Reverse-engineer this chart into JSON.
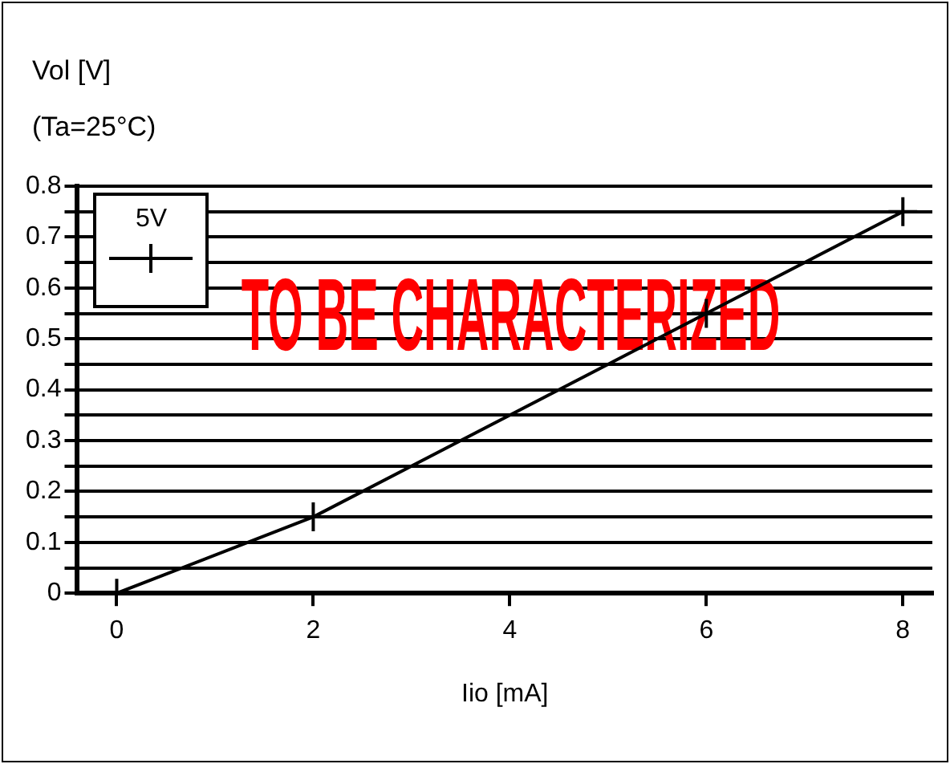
{
  "chart_data": {
    "type": "line",
    "xlabel": "Iio [mA]",
    "ylabel": "Vol [V]",
    "subtitle": "(Ta=25°C)",
    "annotations": [
      "TO BE CHARACTERIZED"
    ],
    "x": [
      0,
      2,
      6,
      8
    ],
    "series": [
      {
        "name": "5V",
        "color": "#000000",
        "values": [
          0,
          0.15,
          0.55,
          0.75
        ]
      }
    ],
    "xlim": [
      -0.4,
      8.3
    ],
    "xticks": [
      0,
      2,
      4,
      6,
      8
    ],
    "ylim": [
      0,
      0.8
    ],
    "yticks": [
      0,
      {
        "value": 0.05,
        "label": null
      },
      0.1,
      {
        "value": 0.15,
        "label": null
      },
      0.2,
      {
        "value": 0.25,
        "label": null
      },
      0.3,
      {
        "value": 0.35,
        "label": null
      },
      0.4,
      {
        "value": 0.45,
        "label": null
      },
      0.5,
      {
        "value": 0.55,
        "label": null
      },
      0.6,
      {
        "value": 0.65,
        "label": null
      },
      0.7,
      {
        "value": 0.75,
        "label": null
      },
      0.8
    ],
    "grid": "y",
    "legend": "top left",
    "marker": "cross",
    "line_style": "solid"
  }
}
